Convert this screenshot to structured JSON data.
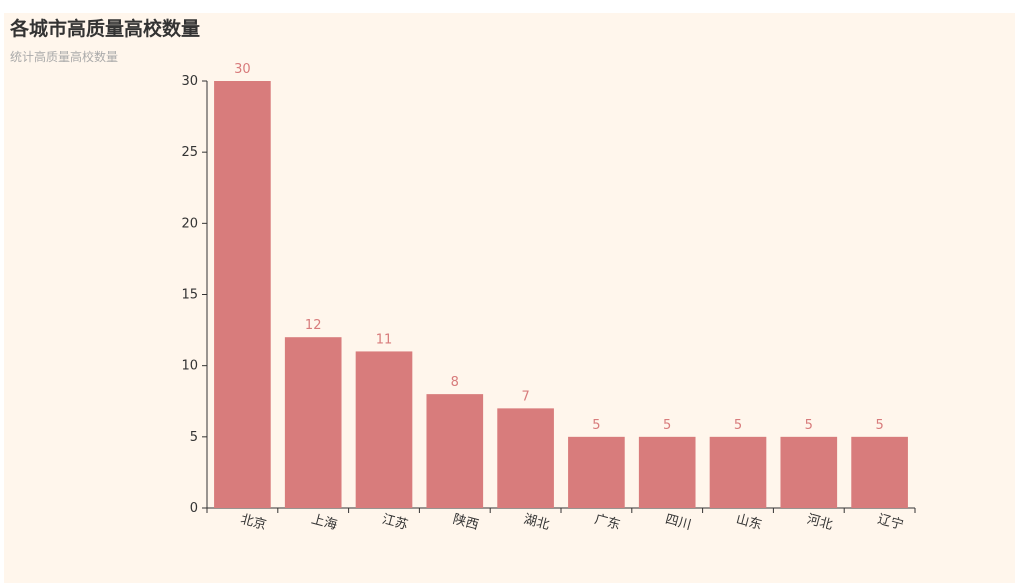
{
  "title": "各城市高质量高校数量",
  "subtitle": "统计高质量高校数量",
  "colors": {
    "bar": "#d87c7c",
    "background": "#fff6ec",
    "axis": "#333333"
  },
  "chart_data": {
    "type": "bar",
    "categories": [
      "北京",
      "上海",
      "江苏",
      "陕西",
      "湖北",
      "广东",
      "四川",
      "山东",
      "河北",
      "辽宁"
    ],
    "values": [
      30,
      12,
      11,
      8,
      7,
      5,
      5,
      5,
      5,
      5
    ],
    "ylim": [
      0,
      30
    ],
    "yticks": [
      0,
      5,
      10,
      15,
      20,
      25,
      30
    ],
    "grid": false,
    "data_labels": true
  }
}
